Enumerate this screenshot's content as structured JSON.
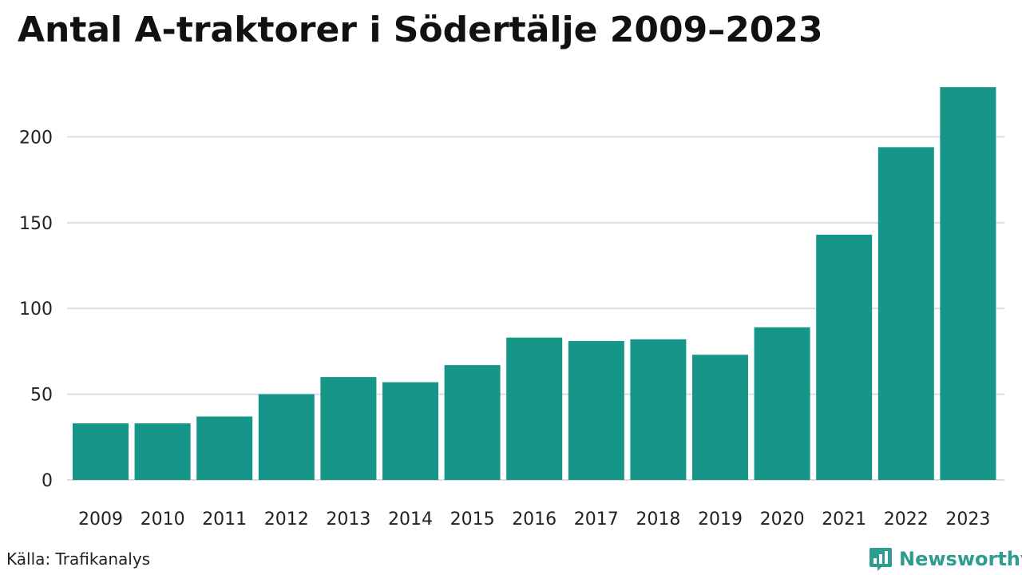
{
  "header": {
    "title": "Antal A-traktorer i Södertälje 2009–2023"
  },
  "footer": {
    "source": "Källa: Trafikanalys",
    "brand": "Newsworthy"
  },
  "colors": {
    "bar": "#159688",
    "grid": "#dcdce6",
    "brand": "#2e9c8e"
  },
  "icons": {
    "brand_logo": "bar-chart-speech-bubble-icon"
  },
  "chart_data": {
    "type": "bar",
    "title": "Antal A-traktorer i Södertälje 2009–2023",
    "xlabel": "",
    "ylabel": "",
    "categories": [
      "2009",
      "2010",
      "2011",
      "2012",
      "2013",
      "2014",
      "2015",
      "2016",
      "2017",
      "2018",
      "2019",
      "2020",
      "2021",
      "2022",
      "2023"
    ],
    "values": [
      33,
      33,
      37,
      50,
      60,
      57,
      67,
      83,
      81,
      82,
      73,
      89,
      143,
      194,
      229
    ],
    "ylim": [
      0,
      230
    ],
    "yticks": [
      0,
      50,
      100,
      150,
      200
    ],
    "grid": true,
    "legend": "none"
  }
}
